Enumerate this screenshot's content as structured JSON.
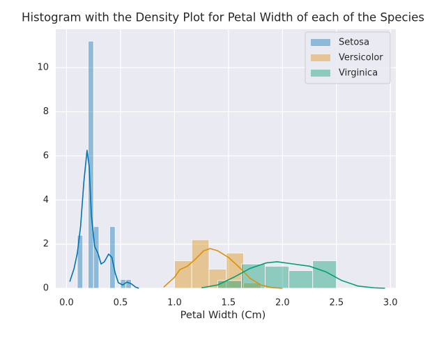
{
  "chart_data": {
    "type": "histogram",
    "title": "Histogram with the Density Plot for Petal Width of each of the Species",
    "xlabel": "Petal Width (Cm)",
    "xlim": [
      -0.1,
      3.05
    ],
    "ylim": [
      0,
      11.74
    ],
    "xticks": [
      {
        "value": 0,
        "label": "0.0"
      },
      0.5,
      {
        "value": 1,
        "label": "1.0"
      },
      1.5,
      {
        "value": 2,
        "label": "2.0"
      },
      2.5,
      {
        "value": 3,
        "label": "3.0"
      }
    ],
    "yticks": [
      0,
      2,
      4,
      6,
      8,
      10
    ],
    "grid": true,
    "legend": "upper right",
    "series": [
      {
        "name": "Setosa",
        "color": "#0173b2",
        "bins": [
          0.1,
          0.15,
          0.2,
          0.25,
          0.3,
          0.35,
          0.4,
          0.45,
          0.5,
          0.55,
          0.6
        ],
        "values": [
          2.4,
          0,
          11.2,
          2.8,
          0,
          0,
          2.8,
          0,
          0.4,
          0.4
        ],
        "kde_x": [
          0.03,
          0.07,
          0.1,
          0.13,
          0.16,
          0.19,
          0.21,
          0.23,
          0.26,
          0.29,
          0.32,
          0.35,
          0.39,
          0.42,
          0.45,
          0.48,
          0.52,
          0.56,
          0.6,
          0.64,
          0.67
        ],
        "kde_y": [
          0.3,
          0.9,
          1.6,
          2.8,
          4.8,
          6.25,
          5.5,
          3.3,
          1.9,
          1.6,
          1.1,
          1.2,
          1.55,
          1.4,
          0.7,
          0.25,
          0.15,
          0.28,
          0.2,
          0.05,
          0
        ]
      },
      {
        "name": "Versicolor",
        "color": "#de8f05",
        "bins": [
          1.0,
          1.16,
          1.32,
          1.48,
          1.64,
          1.8
        ],
        "values": [
          1.25,
          2.2,
          0.87,
          1.6,
          0.25
        ],
        "kde_x": [
          0.9,
          1.0,
          1.05,
          1.12,
          1.2,
          1.27,
          1.33,
          1.4,
          1.5,
          1.6,
          1.7,
          1.8,
          1.9,
          2.0
        ],
        "kde_y": [
          0.05,
          0.5,
          0.85,
          1.0,
          1.35,
          1.7,
          1.8,
          1.7,
          1.4,
          0.95,
          0.45,
          0.15,
          0.03,
          0
        ]
      },
      {
        "name": "Virginica",
        "color": "#029e73",
        "bins": [
          1.4,
          1.62,
          1.84,
          2.06,
          2.28,
          2.5
        ],
        "values": [
          0.35,
          1.1,
          1.0,
          0.8,
          1.25
        ],
        "kde_x": [
          1.25,
          1.4,
          1.55,
          1.7,
          1.85,
          1.95,
          2.1,
          2.25,
          2.4,
          2.55,
          2.7,
          2.85,
          2.95
        ],
        "kde_y": [
          0.02,
          0.15,
          0.5,
          0.9,
          1.15,
          1.2,
          1.1,
          1.0,
          0.75,
          0.35,
          0.1,
          0.02,
          0
        ]
      }
    ]
  }
}
